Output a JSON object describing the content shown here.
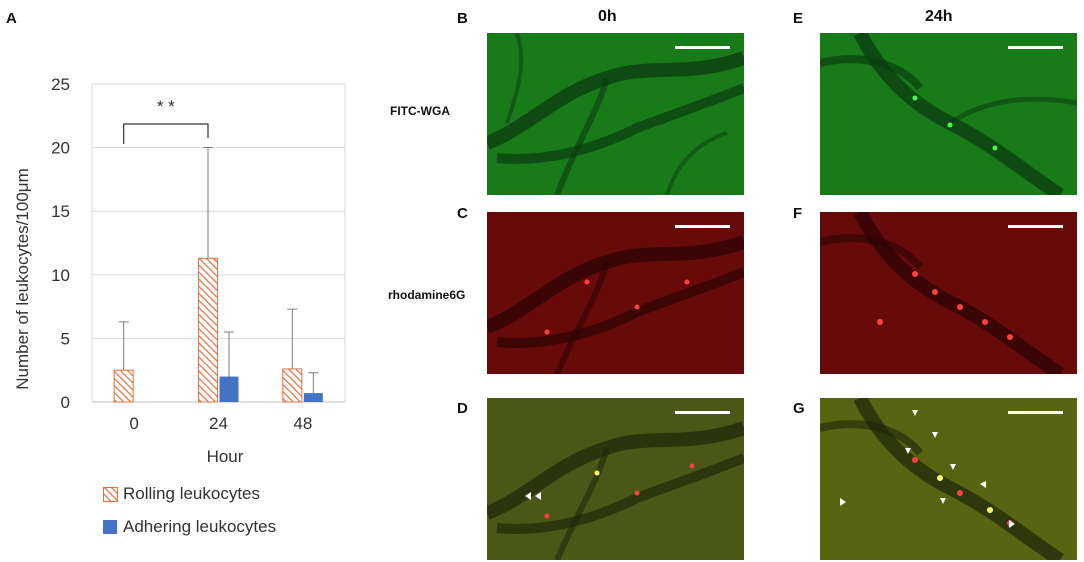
{
  "panels": {
    "A": "A",
    "B": "B",
    "C": "C",
    "D": "D",
    "E": "E",
    "F": "F",
    "G": "G"
  },
  "columns": {
    "left": "0h",
    "right": "24h"
  },
  "rows": {
    "top": "FITC-WGA",
    "middle": "rhodamine6G"
  },
  "chart_data": {
    "type": "bar",
    "categories": [
      "0",
      "24",
      "48"
    ],
    "series": [
      {
        "name": "Rolling leukocytes",
        "values": [
          2.5,
          11.3,
          2.6
        ],
        "error": [
          3.8,
          8.7,
          4.7
        ],
        "pattern": "hatch",
        "color": "#e2703a"
      },
      {
        "name": "Adhering leukocytes",
        "values": [
          0,
          2.0,
          0.7
        ],
        "error": [
          0,
          3.5,
          1.6
        ],
        "pattern": "solid",
        "color": "#4472c4"
      }
    ],
    "xlabel": "Hour",
    "ylabel": "Number of leukocytes/100μm",
    "ylim": [
      0,
      25
    ],
    "yticks": [
      "0",
      "5",
      "10",
      "15",
      "20",
      "25"
    ],
    "grid": true,
    "legend_position": "bottom",
    "significance": {
      "between": [
        "0",
        "24"
      ],
      "label": "* *"
    }
  }
}
